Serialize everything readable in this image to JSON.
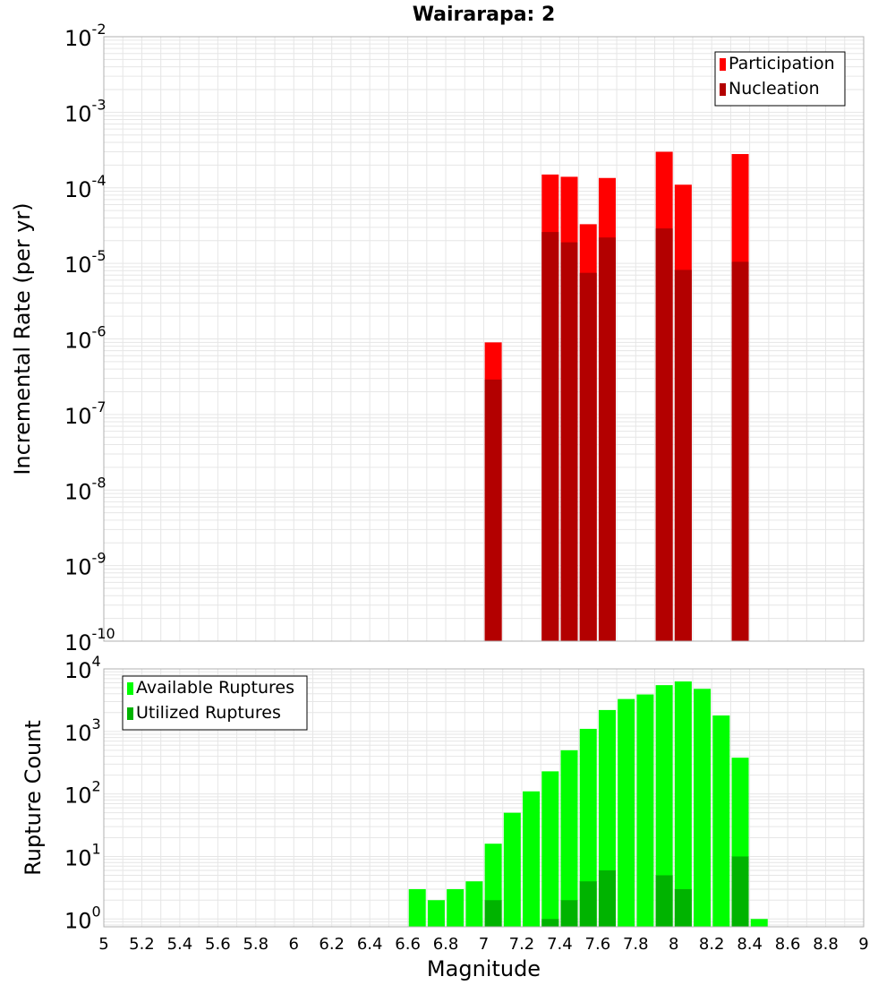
{
  "chart_data": [
    {
      "type": "bar",
      "title": "Wairarapa: 2",
      "ylabel": "Incremental Rate (per yr)",
      "xlabel": "",
      "yscale": "log",
      "ylim": [
        1e-10,
        0.01
      ],
      "xlim": [
        5,
        9
      ],
      "legend": {
        "position": "top-right",
        "entries": [
          "Participation",
          "Nucleation"
        ]
      },
      "series": [
        {
          "name": "Participation",
          "color": "#ff0000",
          "x": [
            7.05,
            7.35,
            7.45,
            7.55,
            7.65,
            7.95,
            8.05,
            8.35
          ],
          "values": [
            9e-07,
            0.00015,
            0.00014,
            3.3e-05,
            0.000135,
            0.0003,
            0.00011,
            0.00028
          ]
        },
        {
          "name": "Nucleation",
          "color": "#b30000",
          "x": [
            7.05,
            7.35,
            7.45,
            7.55,
            7.65,
            7.95,
            8.05,
            8.35
          ],
          "values": [
            2.9e-07,
            2.6e-05,
            1.9e-05,
            7.5e-06,
            2.2e-05,
            2.9e-05,
            8.2e-06,
            1.05e-05
          ]
        }
      ]
    },
    {
      "type": "bar",
      "title": "",
      "ylabel": "Rupture Count",
      "xlabel": "Magnitude",
      "yscale": "log",
      "ylim": [
        0.75,
        10000
      ],
      "xlim": [
        5,
        9
      ],
      "x_ticks": [
        "5",
        "5.2",
        "5.4",
        "5.6",
        "5.8",
        "6",
        "6.2",
        "6.4",
        "6.6",
        "6.8",
        "7",
        "7.2",
        "7.4",
        "7.6",
        "7.8",
        "8",
        "8.2",
        "8.4",
        "8.6",
        "8.8",
        "9"
      ],
      "legend": {
        "position": "top-left",
        "entries": [
          "Available Ruptures",
          "Utilized Ruptures"
        ]
      },
      "series": [
        {
          "name": "Available Ruptures",
          "color": "#00ff00",
          "x": [
            6.65,
            6.75,
            6.85,
            6.95,
            7.05,
            7.15,
            7.25,
            7.35,
            7.45,
            7.55,
            7.65,
            7.75,
            7.85,
            7.95,
            8.05,
            8.15,
            8.25,
            8.35,
            8.45
          ],
          "values": [
            3,
            2,
            3,
            4,
            16,
            50,
            110,
            230,
            500,
            1100,
            2200,
            3300,
            3900,
            5500,
            6300,
            4800,
            1800,
            380,
            1
          ]
        },
        {
          "name": "Utilized Ruptures",
          "color": "#00b300",
          "x": [
            7.05,
            7.35,
            7.45,
            7.55,
            7.65,
            7.95,
            8.05,
            8.35
          ],
          "values": [
            2,
            1,
            2,
            4,
            6,
            5,
            3,
            10
          ]
        }
      ]
    }
  ]
}
